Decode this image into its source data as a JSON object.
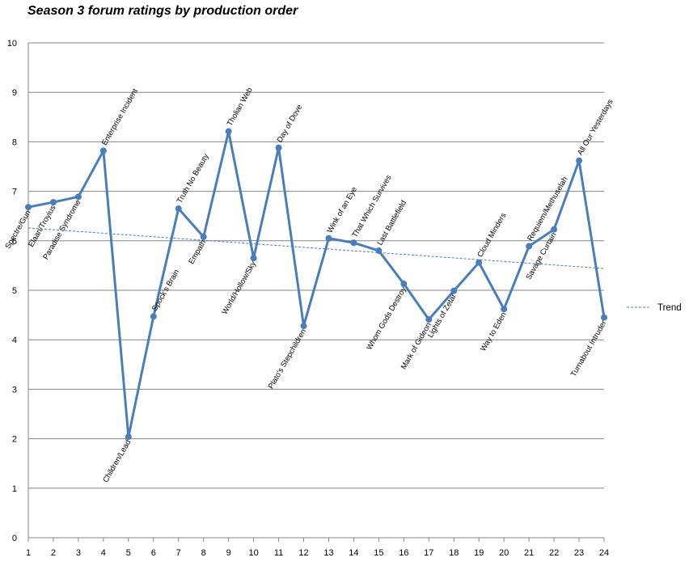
{
  "chart_data": {
    "type": "line",
    "title": "Season 3 forum ratings by production order",
    "xlabel": "",
    "ylabel": "",
    "x": [
      1,
      2,
      3,
      4,
      5,
      6,
      7,
      8,
      9,
      10,
      11,
      12,
      13,
      14,
      15,
      16,
      17,
      18,
      19,
      20,
      21,
      22,
      23,
      24
    ],
    "xlim": [
      1,
      24
    ],
    "ylim": [
      0,
      10
    ],
    "yticks": [
      0,
      1,
      2,
      3,
      4,
      5,
      6,
      7,
      8,
      9,
      10
    ],
    "grid": true,
    "series": [
      {
        "values": [
          6.68,
          6.78,
          6.89,
          7.82,
          2.04,
          4.47,
          6.65,
          6.08,
          8.21,
          5.65,
          7.88,
          4.28,
          6.05,
          5.96,
          5.8,
          5.13,
          4.41,
          4.99,
          5.56,
          4.62,
          5.89,
          6.23,
          7.62,
          4.45
        ],
        "labels": [
          "Spectre/Gun",
          "Elaan/Troyius",
          "Paradise Syndrome",
          "Enterprise Incident",
          "Children/Lead",
          "Spock's Brain",
          "Truth No Beauty",
          "Empath",
          "Tholian Web",
          "World/Hollow/Sky",
          "Day of Dove",
          "Plato's Stepchildren",
          "Wink of an Eye",
          "That Which Survives",
          "Last Battlefield",
          "Whom Gods Destroy",
          "Mark of Gideon",
          "Lights of Zetar",
          "Cloud Minders",
          "Way to Eden",
          "Requiem/Methuselah",
          "Savage Curtain",
          "All Our Yesterdays",
          "Turnabout Intruder"
        ],
        "label_side": [
          "below",
          "below",
          "below",
          "above",
          "below",
          "above",
          "above",
          "below",
          "above",
          "below",
          "above",
          "below",
          "above",
          "above",
          "above",
          "below",
          "below",
          "below",
          "above",
          "below",
          "above",
          "below",
          "above",
          "below"
        ],
        "color": "#4A7EBB"
      }
    ],
    "trend": {
      "name": "Trend",
      "start": 6.26,
      "end": 5.44,
      "color": "#4A7EBB",
      "style": "dashed"
    },
    "legend_position": "right"
  }
}
